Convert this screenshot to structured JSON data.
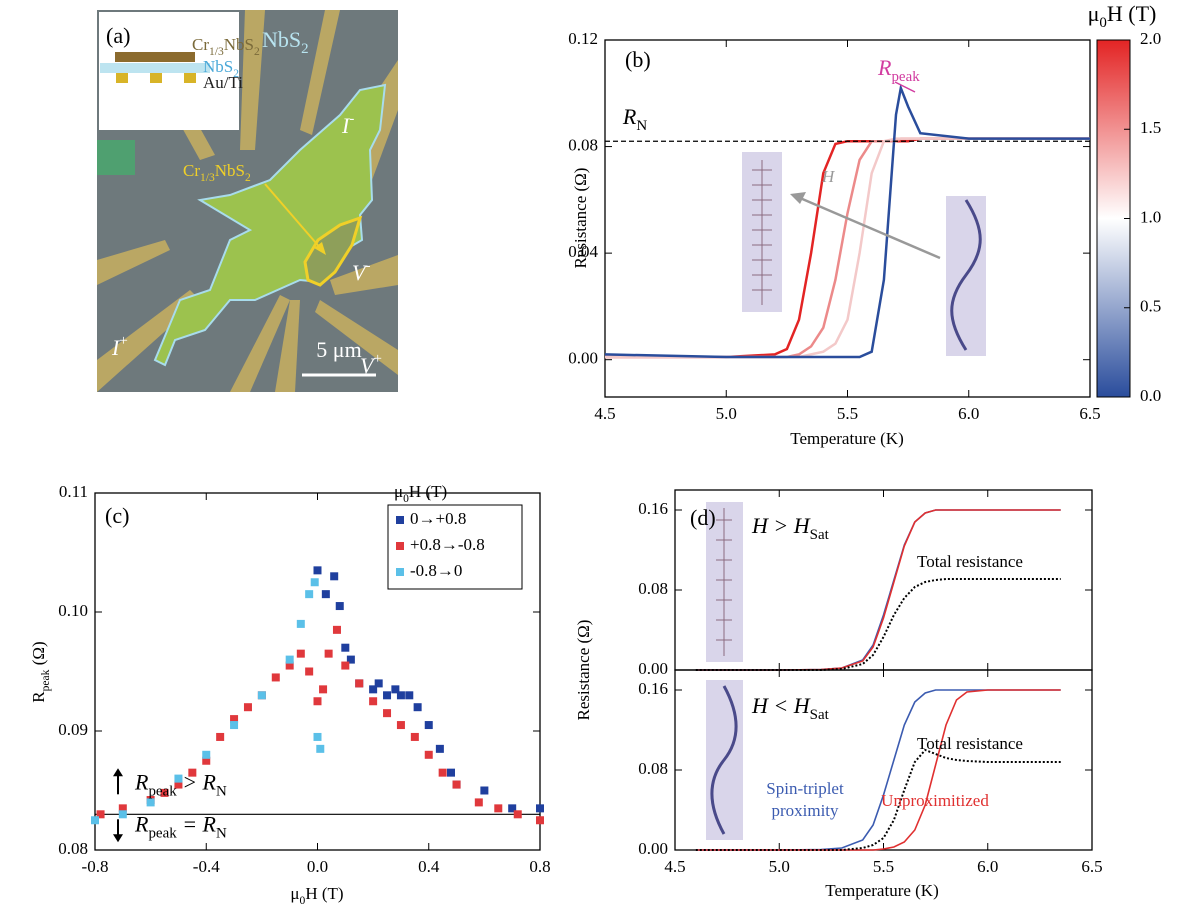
{
  "image_panel": {
    "label": "(a)",
    "host": [
      "NbS",
      {
        "sub": "2"
      }
    ],
    "flake": [
      "Cr",
      {
        "sub": "1/3"
      },
      "NbS",
      {
        "sub": "2"
      }
    ],
    "inset_labels": [
      [
        "Cr",
        {
          "sub": "1/3"
        },
        "NbS",
        {
          "sub": "2"
        }
      ],
      [
        "NbS",
        {
          "sub": "2"
        }
      ],
      "Au/Ti"
    ],
    "contacts": [
      [
        "I",
        {
          "sup": "-"
        }
      ],
      [
        "V",
        {
          "sup": "-"
        }
      ],
      [
        "V",
        {
          "sup": "+"
        }
      ],
      [
        "I",
        {
          "sup": "+"
        }
      ]
    ],
    "scale_bar": "5 μm"
  },
  "chart_data": [
    {
      "type": "line",
      "label": "(b)",
      "xlabel": "Temperature (K)",
      "ylabel": "Resistance (Ω)",
      "x": [
        4.5,
        5.0,
        5.2,
        5.25,
        5.3,
        5.35,
        5.4,
        5.45,
        5.5,
        5.55,
        5.6,
        5.65,
        5.7,
        5.72,
        5.75,
        5.8,
        6.0,
        6.5
      ],
      "series": [
        {
          "color": "#e32424",
          "values": [
            0.001,
            0.001,
            0.002,
            0.004,
            0.015,
            0.04,
            0.07,
            0.081,
            0.082,
            0.082,
            0.082,
            0.082,
            0.082,
            0.082,
            0.082,
            0.083,
            0.083,
            0.083
          ]
        },
        {
          "color": "#ec8a8a",
          "values": [
            0.001,
            0.001,
            0.001,
            0.001,
            0.002,
            0.005,
            0.012,
            0.03,
            0.055,
            0.075,
            0.082,
            0.082,
            0.082,
            0.083,
            0.083,
            0.083,
            0.083,
            0.083
          ]
        },
        {
          "color": "#f3c9c9",
          "values": [
            0.001,
            0.001,
            0.001,
            0.001,
            0.001,
            0.002,
            0.003,
            0.006,
            0.015,
            0.04,
            0.07,
            0.082,
            0.083,
            0.083,
            0.083,
            0.083,
            0.083,
            0.083
          ]
        },
        {
          "color": "#2a4d9c",
          "values": [
            0.002,
            0.001,
            0.001,
            0.001,
            0.001,
            0.001,
            0.001,
            0.001,
            0.001,
            0.001,
            0.003,
            0.03,
            0.092,
            0.102,
            0.095,
            0.085,
            0.083,
            0.083
          ]
        }
      ],
      "xlim": [
        4.5,
        6.5
      ],
      "ylim": [
        -0.014,
        0.12
      ],
      "xticks": [
        4.5,
        {
          "value": 5.0,
          "label": "5.0"
        },
        5.5,
        {
          "value": 6.0,
          "label": "6.0"
        },
        6.5
      ],
      "yticks": [
        {
          "value": 0,
          "label": "0.00"
        },
        0.04,
        0.08,
        0.12
      ],
      "reference_line": {
        "value": 0.082,
        "label": [
          "R",
          {
            "sub": "N"
          }
        ]
      },
      "peak_label": [
        "R",
        {
          "sub": "peak"
        }
      ],
      "arrow_label": "H",
      "colorbar": {
        "title": [
          "μ",
          {
            "sub": "0"
          },
          "H (T)"
        ],
        "lim": [
          0,
          2
        ],
        "ticks": [
          {
            "value": 0,
            "label": "0.0"
          },
          0.5,
          {
            "value": 1,
            "label": "1.0"
          },
          1.5,
          {
            "value": 2,
            "label": "2.0"
          }
        ],
        "colors": [
          "#2a4d9c",
          "#ffffff",
          "#e32424"
        ]
      }
    },
    {
      "type": "scatter",
      "label": "(c)",
      "xlabel": [
        "μ",
        {
          "sub": "0"
        },
        "H (T)"
      ],
      "ylabel": [
        "R",
        {
          "sub": "peak"
        },
        " (Ω)"
      ],
      "xlim": [
        -0.8,
        0.8
      ],
      "ylim": [
        0.08,
        0.11
      ],
      "xticks": [
        -0.8,
        -0.4,
        {
          "value": 0,
          "label": "0.0"
        },
        0.4,
        0.8
      ],
      "yticks": [
        0.08,
        0.09,
        {
          "value": 0.1,
          "label": "0.10"
        },
        0.11
      ],
      "legend_title": [
        "μ",
        {
          "sub": "0"
        },
        "H (T)"
      ],
      "legend": "upper right",
      "series": [
        {
          "name": "0→+0.8",
          "color": "#1f3f9e",
          "x": [
            0.0,
            0.03,
            0.06,
            0.08,
            0.1,
            0.12,
            0.15,
            0.2,
            0.22,
            0.25,
            0.28,
            0.3,
            0.33,
            0.36,
            0.4,
            0.44,
            0.48,
            0.5,
            0.6,
            0.7,
            0.8
          ],
          "values": [
            0.1035,
            0.1015,
            0.103,
            0.1005,
            0.097,
            0.096,
            0.094,
            0.0935,
            0.094,
            0.093,
            0.0935,
            0.093,
            0.093,
            0.092,
            0.0905,
            0.0885,
            0.0865,
            0.0855,
            0.085,
            0.0835,
            0.0835
          ]
        },
        {
          "name": "+0.8→-0.8",
          "color": "#e0383c",
          "x": [
            0.8,
            0.72,
            0.65,
            0.58,
            0.5,
            0.45,
            0.4,
            0.35,
            0.3,
            0.25,
            0.2,
            0.15,
            0.1,
            0.07,
            0.04,
            0.02,
            0.0,
            -0.03,
            -0.06,
            -0.1,
            -0.15,
            -0.2,
            -0.25,
            -0.3,
            -0.35,
            -0.4,
            -0.45,
            -0.5,
            -0.55,
            -0.6,
            -0.7,
            -0.78
          ],
          "values": [
            0.0825,
            0.083,
            0.0835,
            0.084,
            0.0855,
            0.0865,
            0.088,
            0.0895,
            0.0905,
            0.0915,
            0.0925,
            0.094,
            0.0955,
            0.0985,
            0.0965,
            0.0935,
            0.0925,
            0.095,
            0.0965,
            0.0955,
            0.0945,
            0.093,
            0.092,
            0.091,
            0.0895,
            0.0875,
            0.0865,
            0.0855,
            0.0848,
            0.0842,
            0.0835,
            0.083
          ]
        },
        {
          "name": "-0.8→0",
          "color": "#5bc0e8",
          "x": [
            -0.8,
            -0.7,
            -0.6,
            -0.5,
            -0.4,
            -0.3,
            -0.2,
            -0.1,
            -0.06,
            -0.03,
            -0.01,
            0.0,
            0.01
          ],
          "values": [
            0.0825,
            0.083,
            0.084,
            0.086,
            0.088,
            0.0905,
            0.093,
            0.096,
            0.099,
            0.1015,
            0.1025,
            0.0895,
            0.0885
          ]
        }
      ],
      "reference_line": {
        "value": 0.083
      },
      "annotations": [
        [
          "R",
          {
            "sub": "peak"
          },
          " > R",
          {
            "sub": "N"
          }
        ],
        [
          "R",
          {
            "sub": "peak"
          },
          " = R",
          {
            "sub": "N"
          }
        ]
      ]
    },
    {
      "type": "line",
      "label": "(d)",
      "xlabel": "Temperature (K)",
      "ylabel": "Resistance (Ω)",
      "xlim": [
        4.5,
        6.5
      ],
      "xticks": [
        4.5,
        {
          "value": 5.0,
          "label": "5.0"
        },
        5.5,
        {
          "value": 6.0,
          "label": "6.0"
        },
        6.5
      ],
      "x": [
        4.6,
        5.0,
        5.2,
        5.3,
        5.4,
        5.45,
        5.5,
        5.55,
        5.6,
        5.65,
        5.7,
        5.75,
        5.8,
        5.85,
        5.9,
        6.0,
        6.2,
        6.35
      ],
      "subplots": [
        {
          "ylim": [
            0,
            0.18
          ],
          "yticks": [
            {
              "value": 0,
              "label": "0.00"
            },
            0.08,
            0.16
          ],
          "condition": [
            "H > H",
            {
              "sub": "Sat"
            }
          ],
          "series": [
            {
              "color": "#3b5bb0",
              "dash": "solid",
              "values": [
                0,
                0,
                0.0005,
                0.002,
                0.01,
                0.025,
                0.055,
                0.09,
                0.125,
                0.148,
                0.157,
                0.16,
                0.16,
                0.16,
                0.16,
                0.16,
                0.16,
                0.16
              ]
            },
            {
              "color": "#e03030",
              "dash": "solid",
              "values": [
                0,
                0,
                0.0005,
                0.002,
                0.009,
                0.023,
                0.052,
                0.088,
                0.124,
                0.148,
                0.157,
                0.16,
                0.16,
                0.16,
                0.16,
                0.16,
                0.16,
                0.16
              ]
            },
            {
              "color": "#000000",
              "dash": "dotted",
              "values": [
                0,
                0,
                0,
                0.001,
                0.006,
                0.015,
                0.033,
                0.055,
                0.072,
                0.083,
                0.088,
                0.09,
                0.091,
                0.091,
                0.091,
                0.091,
                0.091,
                0.091
              ]
            }
          ],
          "annotations": [
            "Total resistance"
          ]
        },
        {
          "ylim": [
            0,
            0.18
          ],
          "yticks": [
            {
              "value": 0,
              "label": "0.00"
            },
            0.08,
            0.16
          ],
          "condition": [
            "H < H",
            {
              "sub": "Sat"
            }
          ],
          "series": [
            {
              "color": "#3b5bb0",
              "dash": "solid",
              "values": [
                0,
                0,
                0.0005,
                0.002,
                0.01,
                0.025,
                0.055,
                0.09,
                0.125,
                0.148,
                0.157,
                0.16,
                0.16,
                0.16,
                0.16,
                0.16,
                0.16,
                0.16
              ]
            },
            {
              "color": "#e03030",
              "dash": "solid",
              "values": [
                0,
                0,
                0,
                0,
                0,
                0,
                0.001,
                0.003,
                0.008,
                0.02,
                0.045,
                0.085,
                0.125,
                0.15,
                0.158,
                0.16,
                0.16,
                0.16
              ]
            },
            {
              "color": "#000000",
              "dash": "dotted",
              "values": [
                0,
                0,
                0,
                0,
                0.002,
                0.005,
                0.012,
                0.03,
                0.06,
                0.088,
                0.1,
                0.096,
                0.092,
                0.09,
                0.089,
                0.088,
                0.088,
                0.088
              ]
            }
          ],
          "annotations": [
            "Total resistance",
            "Spin-triplet",
            "proximity",
            "Unproximitized"
          ]
        }
      ]
    }
  ]
}
